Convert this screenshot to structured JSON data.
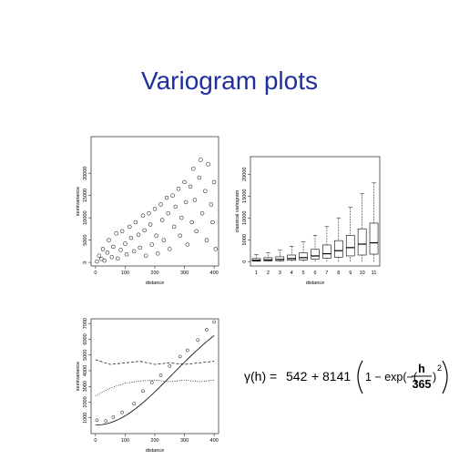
{
  "title": "Variogram plots",
  "chart_data": [
    {
      "type": "scatter",
      "x_label": "distance",
      "y_label": "semivariance",
      "x": [
        5,
        12,
        20,
        25,
        30,
        40,
        45,
        55,
        60,
        70,
        75,
        85,
        90,
        100,
        105,
        115,
        120,
        130,
        135,
        145,
        150,
        160,
        165,
        170,
        180,
        185,
        190,
        200,
        205,
        210,
        220,
        225,
        230,
        240,
        245,
        250,
        260,
        265,
        270,
        280,
        285,
        290,
        300,
        305,
        310,
        320,
        325,
        330,
        335,
        340,
        350,
        355,
        360,
        370,
        375,
        380,
        390,
        395,
        400,
        405
      ],
      "y": [
        200,
        1500,
        800,
        3000,
        400,
        2200,
        5000,
        1200,
        3500,
        6500,
        900,
        2800,
        7000,
        4200,
        1800,
        8000,
        5500,
        2500,
        9000,
        6200,
        3300,
        10500,
        7200,
        1500,
        11000,
        8500,
        4000,
        12000,
        6000,
        2000,
        13000,
        9500,
        5000,
        14500,
        11000,
        3000,
        15000,
        8000,
        12500,
        16500,
        6000,
        10000,
        18000,
        13500,
        4000,
        17000,
        9000,
        21000,
        14000,
        7000,
        19000,
        23000,
        11000,
        16000,
        5000,
        22000,
        13000,
        9000,
        18000,
        3000
      ],
      "xlim": [
        -15,
        415
      ],
      "ylim": [
        -800,
        28200
      ],
      "xticks": [
        0,
        100,
        200,
        300,
        400
      ],
      "yticks": [
        0,
        5000,
        10000,
        15000,
        20000
      ],
      "color": "#000000"
    },
    {
      "type": "box",
      "x_label": "distance",
      "y_label": "classical variogram",
      "categories": [
        "1",
        "2",
        "3",
        "4",
        "5",
        "6",
        "7",
        "8",
        "9",
        "10",
        "11"
      ],
      "min": [
        0,
        0,
        0,
        0,
        0,
        0,
        0,
        0,
        0,
        0,
        0
      ],
      "q1": [
        100,
        150,
        200,
        300,
        400,
        600,
        800,
        1000,
        1300,
        1500,
        1700
      ],
      "median": [
        300,
        400,
        500,
        700,
        900,
        1300,
        1800,
        2500,
        3200,
        4000,
        4300
      ],
      "q3": [
        700,
        900,
        1100,
        1500,
        2000,
        2800,
        3800,
        4800,
        6000,
        7500,
        8800
      ],
      "max": [
        1600,
        2000,
        2600,
        3500,
        4500,
        6000,
        8000,
        10000,
        12500,
        15500,
        18000
      ],
      "ylim": [
        -1000,
        24000
      ],
      "yticks": [
        0,
        5000,
        10000,
        15000,
        20000
      ],
      "color": "#000000"
    },
    {
      "type": "line",
      "x_label": "distance",
      "y_label": "semivariance",
      "xlim": [
        -15,
        415
      ],
      "ylim": [
        0,
        7300
      ],
      "xticks": [
        0,
        100,
        200,
        300,
        400
      ],
      "yticks": [
        1000,
        2000,
        3000,
        4000,
        5000,
        6000,
        7000
      ],
      "series": [
        {
          "style": "points",
          "color": "#000000",
          "x": [
            5,
            35,
            60,
            90,
            130,
            160,
            190,
            220,
            250,
            285,
            310,
            345,
            375,
            400
          ],
          "values": [
            850,
            800,
            1050,
            1350,
            1900,
            2700,
            3250,
            3700,
            4300,
            4900,
            5300,
            5950,
            6600,
            7100
          ]
        },
        {
          "style": "dashed",
          "color": "#000000",
          "x": [
            0,
            50,
            100,
            150,
            200,
            250,
            300,
            350,
            400
          ],
          "values": [
            4700,
            4400,
            4500,
            4600,
            4400,
            4500,
            4400,
            4500,
            4600
          ]
        },
        {
          "style": "dotted",
          "color": "#000000",
          "x": [
            0,
            50,
            100,
            150,
            200,
            250,
            300,
            350,
            400
          ],
          "values": [
            2400,
            2900,
            3200,
            3350,
            3400,
            3300,
            3400,
            3300,
            3400
          ]
        }
      ]
    }
  ],
  "formula": {
    "lhs": "γ(h) = ",
    "nugget": 542,
    "plus": "+",
    "sill": 8141,
    "inner": "1 − exp(−(",
    "h": "h",
    "range": 365,
    "close": ")",
    "power": "2"
  }
}
